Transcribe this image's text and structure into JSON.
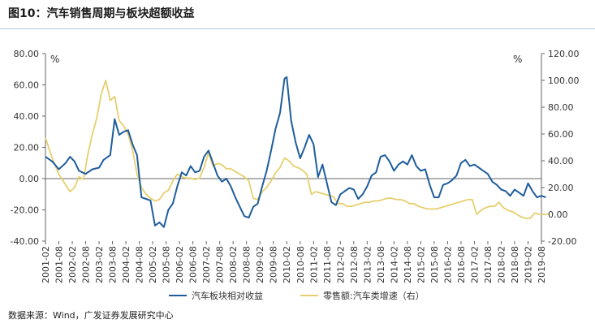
{
  "figure_title": "图10：汽车销售周期与板块超额收益",
  "source": "数据来源：Wind，广发证券发展研究中心",
  "colors": {
    "series_left": "#1f5d9c",
    "series_right": "#e6cf6f",
    "axis": "#666666",
    "text": "#333333"
  },
  "chart_data": {
    "type": "line",
    "left_axis": {
      "unit": "%",
      "range": [
        -40,
        80
      ],
      "ticks": [
        "80.00",
        "60.00",
        "40.00",
        "20.00",
        "0.00",
        "-20.00",
        "-40.00"
      ]
    },
    "right_axis": {
      "unit": "%",
      "range": [
        -20,
        120
      ],
      "ticks": [
        "120.00",
        "100.00",
        "80.00",
        "60.00",
        "40.00",
        "20.00",
        "0.00",
        "-20.00"
      ]
    },
    "x_axis": {
      "range": [
        "2001-02",
        "2019-08"
      ],
      "tick_labels": [
        "2001-02",
        "2001-08",
        "2002-02",
        "2002-08",
        "2003-02",
        "2003-08",
        "2004-02",
        "2004-08",
        "2005-02",
        "2005-08",
        "2006-02",
        "2006-08",
        "2007-02",
        "2007-08",
        "2008-02",
        "2008-08",
        "2009-02",
        "2009-08",
        "2010-02",
        "2010-08",
        "2011-02",
        "2011-08",
        "2012-02",
        "2012-08",
        "2013-02",
        "2013-08",
        "2014-02",
        "2014-08",
        "2015-02",
        "2015-08",
        "2016-02",
        "2016-08",
        "2017-02",
        "2017-08",
        "2018-02",
        "2018-08",
        "2019-02",
        "2019-08"
      ]
    },
    "legend": {
      "placement": "bottom"
    },
    "series": [
      {
        "name": "汽车板块相对收益",
        "axis": "left",
        "points": [
          [
            "2001-02",
            14
          ],
          [
            "2001-05",
            11
          ],
          [
            "2001-08",
            6
          ],
          [
            "2001-11",
            10
          ],
          [
            "2002-01",
            14
          ],
          [
            "2002-03",
            11
          ],
          [
            "2002-05",
            5
          ],
          [
            "2002-08",
            3
          ],
          [
            "2002-11",
            6
          ],
          [
            "2003-02",
            7
          ],
          [
            "2003-04",
            12
          ],
          [
            "2003-07",
            15
          ],
          [
            "2003-09",
            38
          ],
          [
            "2003-11",
            28
          ],
          [
            "2004-01",
            30
          ],
          [
            "2004-03",
            31
          ],
          [
            "2004-05",
            22
          ],
          [
            "2004-07",
            15
          ],
          [
            "2004-09",
            -12
          ],
          [
            "2004-11",
            -13
          ],
          [
            "2005-01",
            -14
          ],
          [
            "2005-03",
            -30
          ],
          [
            "2005-05",
            -28
          ],
          [
            "2005-07",
            -31
          ],
          [
            "2005-09",
            -20
          ],
          [
            "2005-11",
            -16
          ],
          [
            "2006-01",
            -5
          ],
          [
            "2006-03",
            4
          ],
          [
            "2006-05",
            2
          ],
          [
            "2006-07",
            8
          ],
          [
            "2006-09",
            4
          ],
          [
            "2006-11",
            5
          ],
          [
            "2007-01",
            14
          ],
          [
            "2007-03",
            18
          ],
          [
            "2007-05",
            10
          ],
          [
            "2007-07",
            2
          ],
          [
            "2007-09",
            -2
          ],
          [
            "2007-11",
            0
          ],
          [
            "2008-01",
            -5
          ],
          [
            "2008-03",
            -12
          ],
          [
            "2008-05",
            -18
          ],
          [
            "2008-07",
            -24
          ],
          [
            "2008-09",
            -25
          ],
          [
            "2008-11",
            -18
          ],
          [
            "2009-01",
            -16
          ],
          [
            "2009-03",
            -5
          ],
          [
            "2009-05",
            5
          ],
          [
            "2009-07",
            18
          ],
          [
            "2009-09",
            32
          ],
          [
            "2009-11",
            42
          ],
          [
            "2010-01",
            64
          ],
          [
            "2010-02",
            65
          ],
          [
            "2010-04",
            37
          ],
          [
            "2010-06",
            23
          ],
          [
            "2010-08",
            13
          ],
          [
            "2010-10",
            20
          ],
          [
            "2010-12",
            28
          ],
          [
            "2011-02",
            22
          ],
          [
            "2011-04",
            1
          ],
          [
            "2011-06",
            9
          ],
          [
            "2011-08",
            -3
          ],
          [
            "2011-10",
            -15
          ],
          [
            "2011-12",
            -17
          ],
          [
            "2012-02",
            -10
          ],
          [
            "2012-04",
            -8
          ],
          [
            "2012-06",
            -6
          ],
          [
            "2012-08",
            -7
          ],
          [
            "2012-10",
            -13
          ],
          [
            "2012-12",
            -10
          ],
          [
            "2013-02",
            -5
          ],
          [
            "2013-04",
            2
          ],
          [
            "2013-06",
            4
          ],
          [
            "2013-08",
            14
          ],
          [
            "2013-10",
            15
          ],
          [
            "2013-12",
            11
          ],
          [
            "2014-02",
            5
          ],
          [
            "2014-04",
            9
          ],
          [
            "2014-06",
            11
          ],
          [
            "2014-08",
            9
          ],
          [
            "2014-10",
            15
          ],
          [
            "2014-12",
            8
          ],
          [
            "2015-02",
            5
          ],
          [
            "2015-04",
            6
          ],
          [
            "2015-06",
            -4
          ],
          [
            "2015-08",
            -12
          ],
          [
            "2015-10",
            -12
          ],
          [
            "2015-12",
            -4
          ],
          [
            "2016-02",
            -3
          ],
          [
            "2016-04",
            -1
          ],
          [
            "2016-06",
            2
          ],
          [
            "2016-08",
            10
          ],
          [
            "2016-10",
            12
          ],
          [
            "2016-12",
            8
          ],
          [
            "2017-02",
            9
          ],
          [
            "2017-04",
            7
          ],
          [
            "2017-06",
            5
          ],
          [
            "2017-08",
            3
          ],
          [
            "2017-10",
            -2
          ],
          [
            "2017-12",
            -4
          ],
          [
            "2018-02",
            -7
          ],
          [
            "2018-04",
            -8
          ],
          [
            "2018-06",
            -11
          ],
          [
            "2018-08",
            -7
          ],
          [
            "2018-10",
            -9
          ],
          [
            "2018-12",
            -11
          ],
          [
            "2019-02",
            -3
          ],
          [
            "2019-04",
            -8
          ],
          [
            "2019-06",
            -12
          ],
          [
            "2019-08",
            -11
          ],
          [
            "2019-10",
            -12
          ]
        ]
      },
      {
        "name": "零售额:汽车类增速（右）",
        "axis": "right",
        "points": [
          [
            "2001-02",
            57
          ],
          [
            "2001-05",
            42
          ],
          [
            "2001-08",
            30
          ],
          [
            "2001-11",
            22
          ],
          [
            "2002-01",
            17
          ],
          [
            "2002-03",
            20
          ],
          [
            "2002-05",
            28
          ],
          [
            "2002-07",
            26
          ],
          [
            "2002-09",
            45
          ],
          [
            "2002-11",
            60
          ],
          [
            "2003-01",
            72
          ],
          [
            "2003-03",
            90
          ],
          [
            "2003-05",
            100
          ],
          [
            "2003-07",
            85
          ],
          [
            "2003-09",
            88
          ],
          [
            "2003-11",
            70
          ],
          [
            "2004-01",
            66
          ],
          [
            "2004-03",
            60
          ],
          [
            "2004-05",
            48
          ],
          [
            "2004-07",
            30
          ],
          [
            "2004-09",
            20
          ],
          [
            "2004-11",
            15
          ],
          [
            "2005-01",
            12
          ],
          [
            "2005-03",
            10
          ],
          [
            "2005-05",
            11
          ],
          [
            "2005-07",
            16
          ],
          [
            "2005-09",
            18
          ],
          [
            "2005-11",
            25
          ],
          [
            "2006-01",
            30
          ],
          [
            "2006-03",
            28
          ],
          [
            "2006-05",
            27
          ],
          [
            "2006-07",
            27
          ],
          [
            "2006-09",
            26
          ],
          [
            "2006-11",
            27
          ],
          [
            "2007-01",
            35
          ],
          [
            "2007-03",
            46
          ],
          [
            "2007-05",
            36
          ],
          [
            "2007-07",
            38
          ],
          [
            "2007-09",
            37
          ],
          [
            "2007-11",
            34
          ],
          [
            "2008-01",
            34
          ],
          [
            "2008-03",
            32
          ],
          [
            "2008-05",
            30
          ],
          [
            "2008-07",
            28
          ],
          [
            "2008-09",
            25
          ],
          [
            "2008-11",
            12
          ],
          [
            "2009-01",
            11
          ],
          [
            "2009-03",
            17
          ],
          [
            "2009-05",
            20
          ],
          [
            "2009-07",
            25
          ],
          [
            "2009-09",
            31
          ],
          [
            "2009-11",
            35
          ],
          [
            "2010-01",
            42
          ],
          [
            "2010-03",
            40
          ],
          [
            "2010-05",
            36
          ],
          [
            "2010-07",
            35
          ],
          [
            "2010-09",
            33
          ],
          [
            "2010-11",
            30
          ],
          [
            "2011-01",
            15
          ],
          [
            "2011-03",
            17
          ],
          [
            "2011-05",
            16
          ],
          [
            "2011-07",
            15
          ],
          [
            "2011-09",
            14
          ],
          [
            "2011-11",
            13
          ],
          [
            "2012-01",
            8
          ],
          [
            "2012-03",
            8
          ],
          [
            "2012-05",
            6
          ],
          [
            "2012-07",
            6
          ],
          [
            "2012-09",
            7
          ],
          [
            "2012-11",
            8
          ],
          [
            "2013-01",
            9
          ],
          [
            "2013-03",
            9
          ],
          [
            "2013-05",
            10
          ],
          [
            "2013-07",
            10
          ],
          [
            "2013-09",
            11
          ],
          [
            "2013-11",
            12
          ],
          [
            "2014-01",
            12
          ],
          [
            "2014-03",
            11
          ],
          [
            "2014-05",
            11
          ],
          [
            "2014-07",
            10
          ],
          [
            "2014-09",
            8
          ],
          [
            "2014-11",
            8
          ],
          [
            "2015-01",
            6
          ],
          [
            "2015-03",
            5
          ],
          [
            "2015-05",
            4
          ],
          [
            "2015-07",
            4
          ],
          [
            "2015-09",
            4
          ],
          [
            "2015-11",
            5
          ],
          [
            "2016-01",
            6
          ],
          [
            "2016-03",
            7
          ],
          [
            "2016-05",
            8
          ],
          [
            "2016-07",
            9
          ],
          [
            "2016-09",
            10
          ],
          [
            "2016-11",
            11
          ],
          [
            "2017-01",
            11
          ],
          [
            "2017-03",
            0
          ],
          [
            "2017-05",
            3
          ],
          [
            "2017-07",
            5
          ],
          [
            "2017-09",
            6
          ],
          [
            "2017-11",
            6
          ],
          [
            "2018-01",
            9
          ],
          [
            "2018-03",
            5
          ],
          [
            "2018-05",
            3
          ],
          [
            "2018-07",
            2
          ],
          [
            "2018-09",
            0
          ],
          [
            "2018-11",
            -2
          ],
          [
            "2019-01",
            -3
          ],
          [
            "2019-03",
            -3
          ],
          [
            "2019-05",
            1
          ],
          [
            "2019-07",
            0
          ],
          [
            "2019-09",
            0
          ],
          [
            "2019-11",
            0
          ]
        ]
      }
    ]
  }
}
